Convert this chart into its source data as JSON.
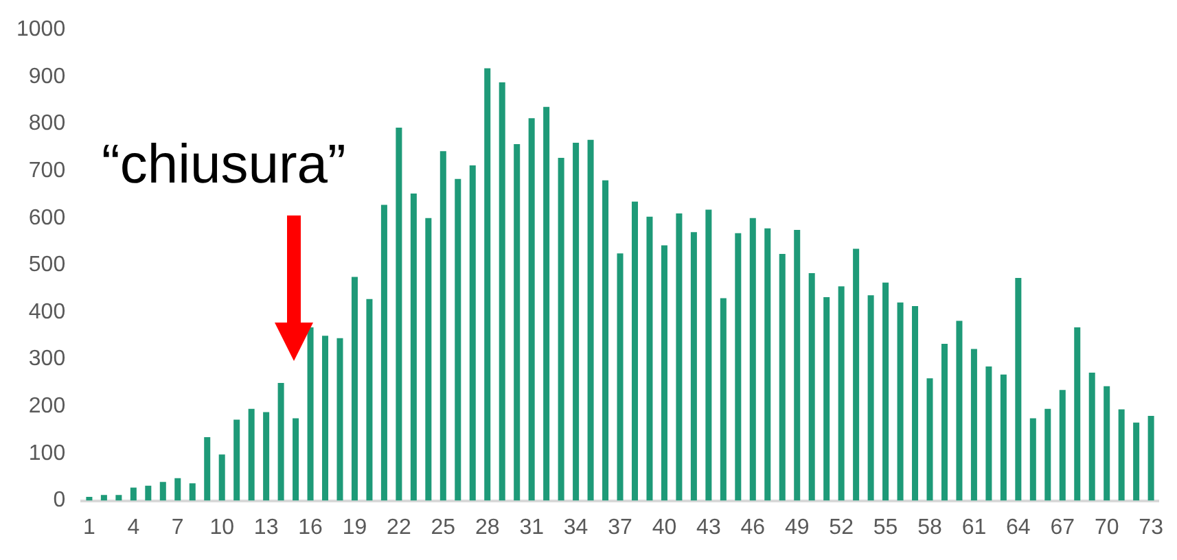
{
  "chart_data": {
    "type": "bar",
    "categories": [
      "1",
      null,
      null,
      "4",
      null,
      null,
      "7",
      null,
      null,
      "10",
      null,
      null,
      "13",
      null,
      null,
      "16",
      null,
      null,
      "19",
      null,
      null,
      "22",
      null,
      null,
      "25",
      null,
      null,
      "28",
      null,
      null,
      "31",
      null,
      null,
      "34",
      null,
      null,
      "37",
      null,
      null,
      "40",
      null,
      null,
      "43",
      null,
      null,
      "46",
      null,
      null,
      "49",
      null,
      null,
      "52",
      null,
      null,
      "55",
      null,
      null,
      "58",
      null,
      null,
      "61",
      null,
      null,
      "64",
      null,
      null,
      "67",
      null,
      null,
      "70",
      null,
      null,
      "73"
    ],
    "values": [
      8,
      12,
      12,
      28,
      32,
      40,
      48,
      37,
      135,
      98,
      172,
      195,
      188,
      250,
      175,
      368,
      350,
      345,
      475,
      428,
      628,
      792,
      652,
      600,
      742,
      683,
      712,
      918,
      888,
      757,
      812,
      836,
      728,
      760,
      766,
      680,
      525,
      635,
      603,
      542,
      610,
      570,
      618,
      430,
      568,
      600,
      578,
      524,
      575,
      483,
      432,
      455,
      535,
      436,
      463,
      421,
      413,
      260,
      333,
      382,
      322,
      285,
      268,
      473,
      175,
      195,
      235,
      368,
      272,
      243,
      194,
      166,
      180
    ],
    "color": "#1e9a78",
    "ylim": [
      0,
      1000
    ],
    "yticks": [
      0,
      100,
      200,
      300,
      400,
      500,
      600,
      700,
      800,
      900,
      1000
    ],
    "grid": false,
    "annotations": [
      "“chiusura”"
    ]
  }
}
